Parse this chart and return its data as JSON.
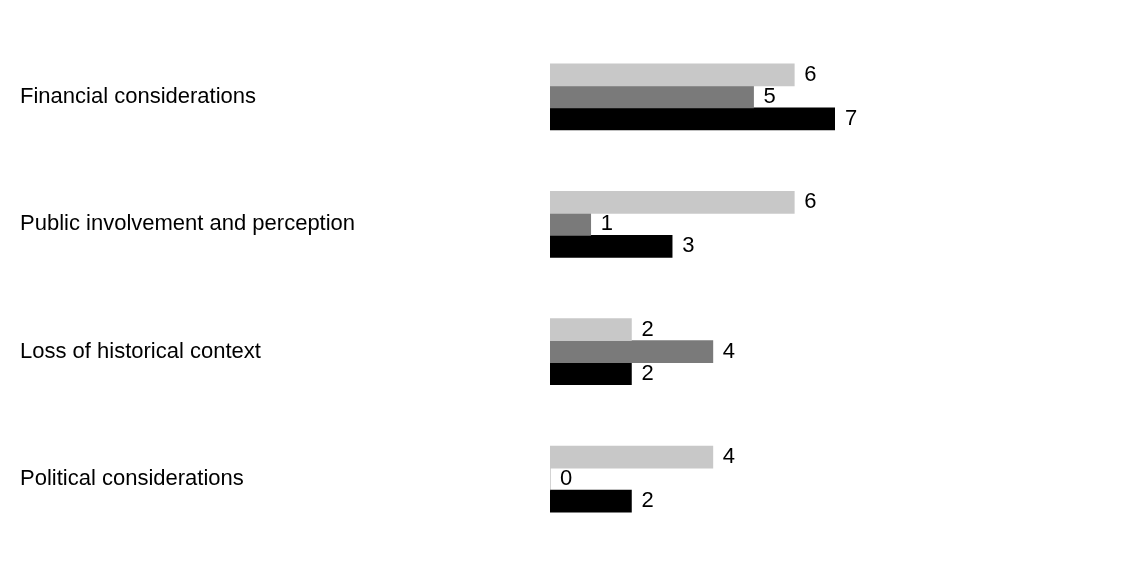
{
  "chart_data": {
    "type": "bar",
    "orientation": "horizontal",
    "categories": [
      "Financial considerations",
      "Public involvement and perception",
      "Loss of historical context",
      "Political considerations"
    ],
    "series": [
      {
        "color": "#c8c8c8",
        "values": [
          6,
          6,
          2,
          4
        ]
      },
      {
        "color": "#7a7a7a",
        "values": [
          5,
          1,
          4,
          0
        ]
      },
      {
        "color": "#000000",
        "values": [
          7,
          3,
          2,
          2
        ]
      }
    ],
    "data_labels": true,
    "legend": false
  }
}
